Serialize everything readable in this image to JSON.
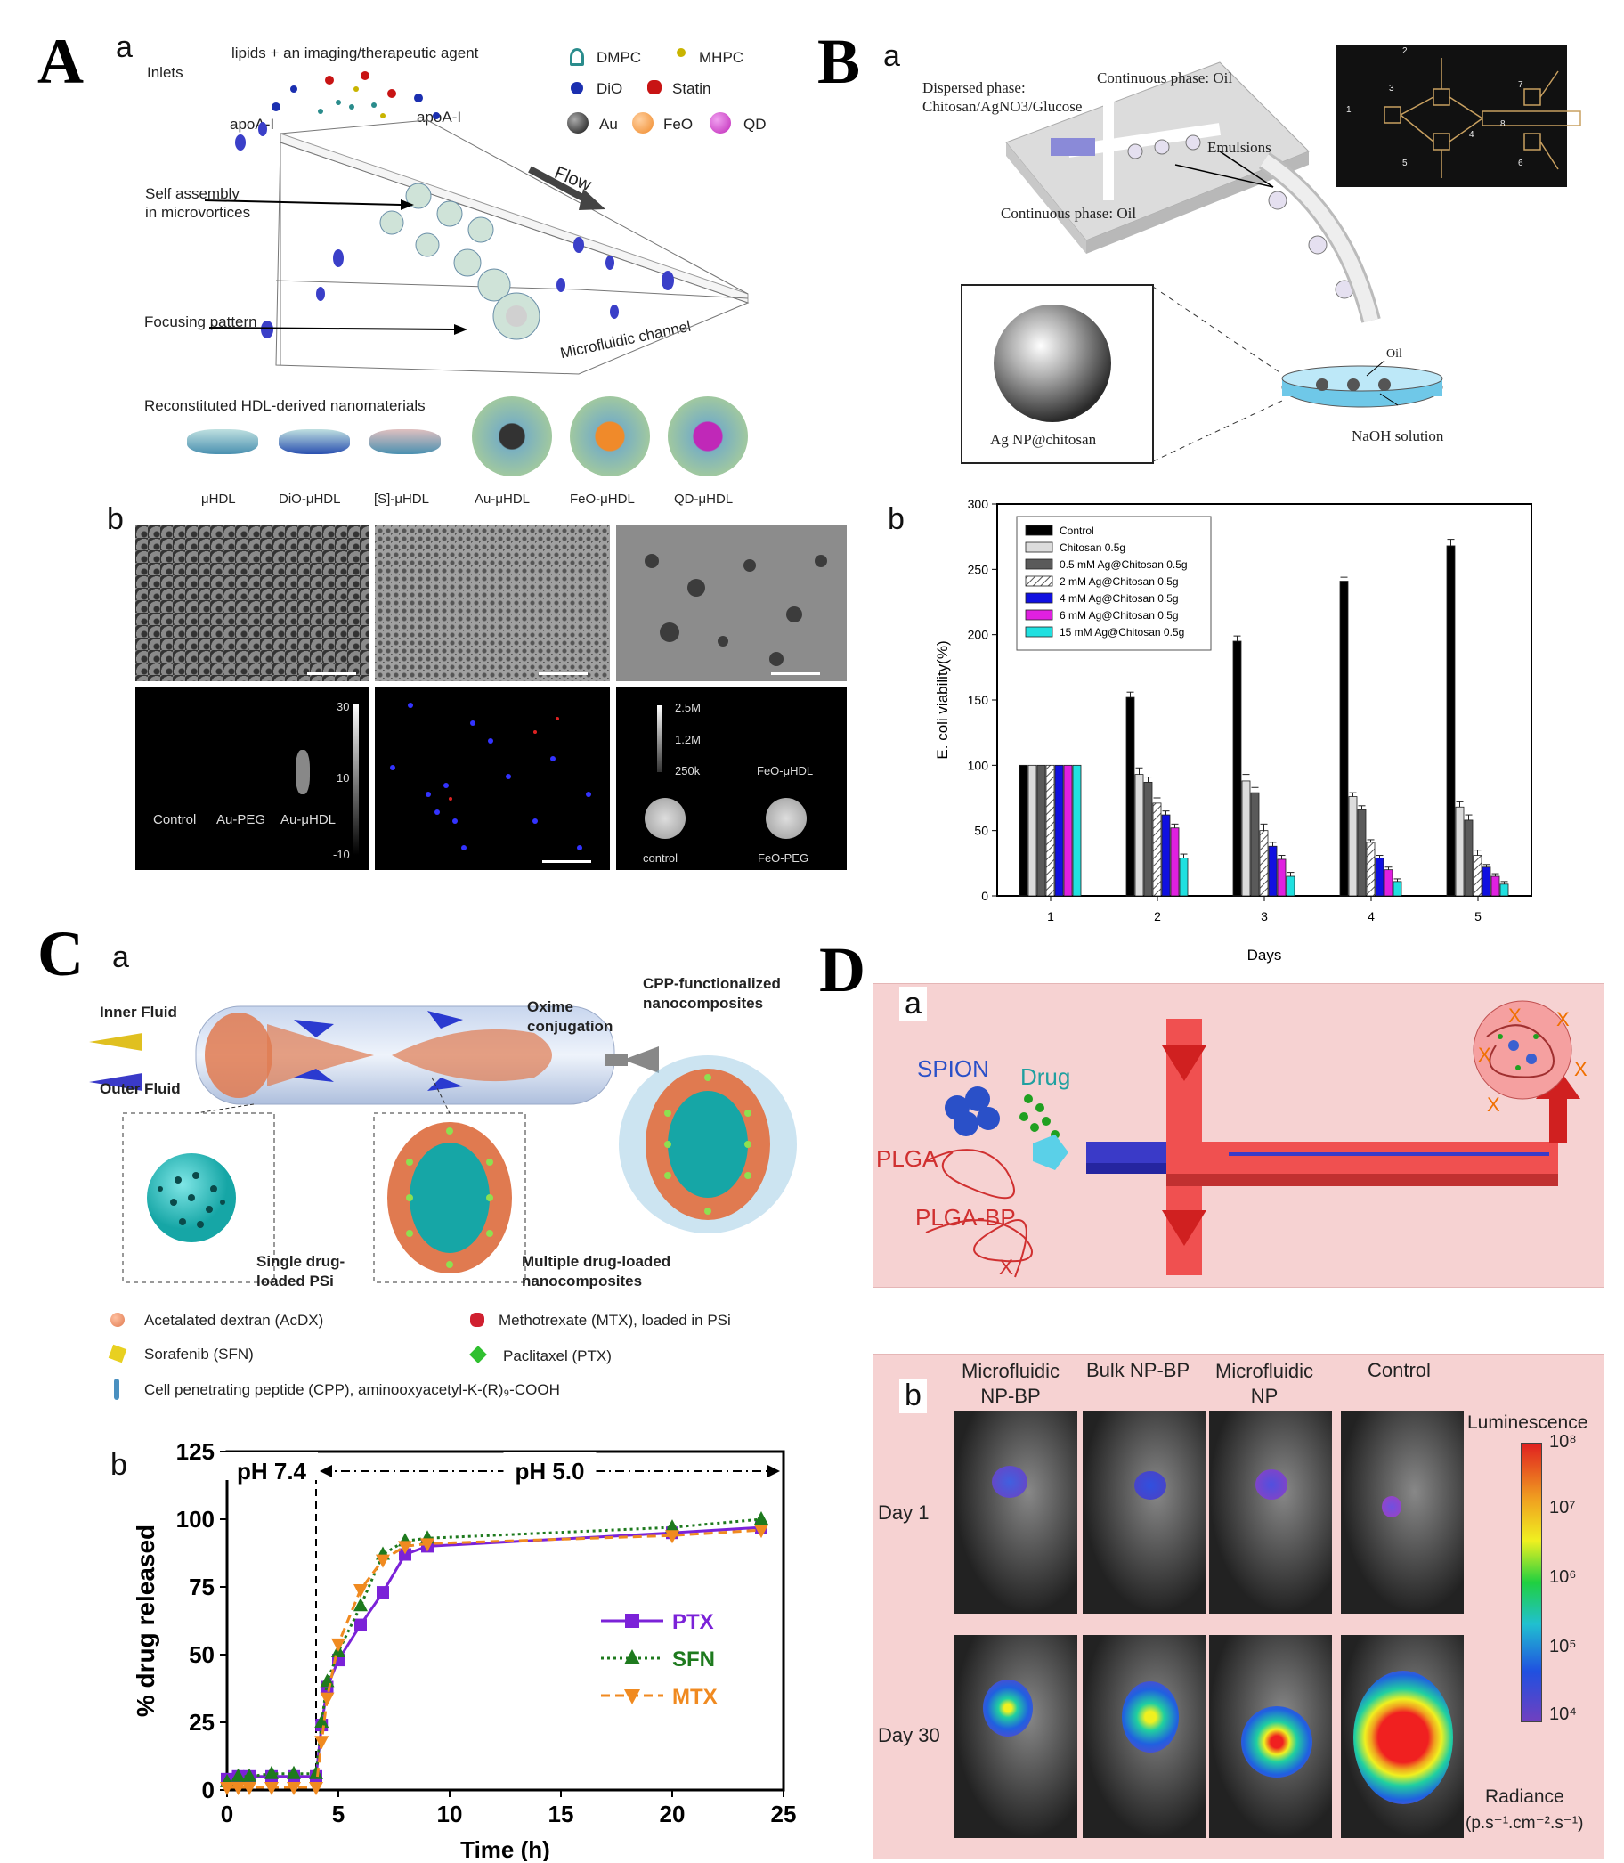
{
  "panel_a": {
    "letter": "A",
    "sub_a": "a",
    "sub_b": "b",
    "inlets": "Inlets",
    "lipids_title": "lipids + an imaging/therapeutic agent",
    "apoa_left": "apoA-I",
    "apoa_right": "apoA-I",
    "self_assembly": "Self assembly\nin microvortices",
    "flow": "Flow",
    "focusing": "Focusing pattern",
    "channel": "Microfluidic channel",
    "legend": [
      {
        "label": "DMPC",
        "color": "#2a8c8c"
      },
      {
        "label": "MHPC",
        "color": "#c9b400"
      },
      {
        "label": "DiO",
        "color": "#1b2fb0"
      },
      {
        "label": "Statin",
        "color": "#c81414"
      },
      {
        "label": "Au",
        "color": "#333333"
      },
      {
        "label": "FeO",
        "color": "#f08a2a"
      },
      {
        "label": "QD",
        "color": "#c028b8"
      }
    ],
    "reconstituted": "Reconstituted HDL-derived nanomaterials",
    "nano_labels": [
      "μHDL",
      "DiO-μHDL",
      "[S]-μHDL",
      "Au-μHDL",
      "FeO-μHDL",
      "QD-μHDL"
    ],
    "ct_scale": [
      "30",
      "10",
      "-10"
    ],
    "ct_labels": [
      "Control",
      "Au-PEG",
      "Au-μHDL"
    ],
    "mri_scale": [
      "2.5M",
      "1.2M",
      "250k"
    ],
    "mri_labels": [
      "FeO-μHDL",
      "control",
      "FeO-PEG"
    ]
  },
  "panel_b": {
    "letter": "B",
    "sub_a": "a",
    "sub_b": "b",
    "dispersed": "Dispersed phase:\nChitosan/AgNO3/Glucose",
    "continuous_top": "Continuous phase: Oil",
    "continuous_bottom": "Continuous phase: Oil",
    "emulsions": "Emulsions",
    "agnp": "Ag NP@chitosan",
    "oil": "Oil",
    "naoh": "NaOH solution",
    "chip_numbers": [
      "1",
      "2",
      "3",
      "4",
      "5",
      "6",
      "7",
      "8"
    ]
  },
  "chart_b": {
    "type": "bar",
    "xlabel": "Days",
    "ylabel": "E. coli viability(%)",
    "ylim": [
      0,
      300
    ],
    "yticks": [
      0,
      50,
      100,
      150,
      200,
      250,
      300
    ],
    "categories": [
      "1",
      "2",
      "3",
      "4",
      "5"
    ],
    "series": [
      {
        "name": "Control",
        "color": "#000000",
        "values": [
          100,
          152,
          195,
          241,
          268
        ],
        "err": [
          0,
          4,
          4,
          3,
          5
        ]
      },
      {
        "name": "Chitosan 0.5g",
        "color": "#dcdcdc",
        "values": [
          100,
          93,
          88,
          76,
          68
        ],
        "err": [
          0,
          5,
          5,
          3,
          4
        ]
      },
      {
        "name": "0.5 mM Ag@Chitosan 0.5g",
        "color": "#5a5a5a",
        "values": [
          100,
          87,
          79,
          66,
          58
        ],
        "err": [
          0,
          4,
          4,
          3,
          4
        ]
      },
      {
        "name": "2 mM Ag@Chitosan 0.5g",
        "color": "#hatch",
        "values": [
          100,
          71,
          50,
          41,
          31
        ],
        "err": [
          0,
          4,
          5,
          2,
          4
        ]
      },
      {
        "name": "4 mM Ag@Chitosan 0.5g",
        "color": "#1010e0",
        "values": [
          100,
          62,
          38,
          29,
          22
        ],
        "err": [
          0,
          3,
          3,
          2,
          2
        ]
      },
      {
        "name": "6 mM Ag@Chitosan 0.5g",
        "color": "#e020e0",
        "values": [
          100,
          52,
          28,
          20,
          15
        ],
        "err": [
          0,
          3,
          3,
          2,
          2
        ]
      },
      {
        "name": "15 mM Ag@Chitosan 0.5g",
        "color": "#20e0e0",
        "values": [
          100,
          29,
          15,
          11,
          9
        ],
        "err": [
          0,
          3,
          3,
          2,
          2
        ]
      }
    ]
  },
  "panel_c": {
    "letter": "C",
    "sub_a": "a",
    "sub_b": "b",
    "inner_fluid": "Inner Fluid",
    "outer_fluid": "Outer Fluid",
    "oxime": "Oxime\nconjugation",
    "cpp_nano": "CPP-functionalized\nnanocomposites",
    "single": "Single drug-\nloaded PSi",
    "multiple": "Multiple drug-loaded\nnanocomposites",
    "legend": [
      {
        "label": "Acetalated dextran (AcDX)",
        "color": "#e87b55"
      },
      {
        "label": "Methotrexate (MTX), loaded in PSi",
        "color": "#d02030"
      },
      {
        "label": "Sorafenib (SFN)",
        "color": "#e8d020"
      },
      {
        "label": "Paclitaxel (PTX)",
        "color": "#30c030"
      },
      {
        "label": "Cell penetrating peptide (CPP), aminooxyacetyl-K-(R)₉-COOH",
        "color": "#4a90c0"
      }
    ]
  },
  "chart_c": {
    "type": "line",
    "xlabel": "Time (h)",
    "ylabel": "% drug released",
    "xlim": [
      0,
      25
    ],
    "ylim": [
      0,
      125
    ],
    "xticks": [
      0,
      5,
      10,
      15,
      20,
      25
    ],
    "yticks": [
      0,
      25,
      50,
      75,
      100,
      125
    ],
    "regions": [
      "pH 7.4",
      "pH 5.0"
    ],
    "divider_x": 4,
    "series": [
      {
        "name": "PTX",
        "color": "#7b22d8",
        "marker": "square",
        "x": [
          0,
          0.5,
          1,
          2,
          3,
          4,
          4.25,
          4.5,
          5,
          6,
          7,
          8,
          9,
          20,
          24
        ],
        "y": [
          4,
          5,
          5,
          5,
          5,
          5,
          24,
          38,
          48,
          61,
          73,
          87,
          90,
          95,
          97
        ]
      },
      {
        "name": "SFN",
        "color": "#1e7a1e",
        "marker": "triangle-up",
        "x": [
          0,
          0.5,
          1,
          2,
          3,
          4,
          4.25,
          4.5,
          5,
          6,
          7,
          8,
          9,
          20,
          24
        ],
        "y": [
          3,
          5,
          5,
          6,
          6,
          6,
          25,
          40,
          51,
          68,
          87,
          92,
          93,
          97,
          100
        ]
      },
      {
        "name": "MTX",
        "color": "#f08a20",
        "marker": "triangle-down",
        "x": [
          0,
          0.5,
          1,
          2,
          3,
          4,
          4.25,
          4.5,
          5,
          6,
          7,
          8,
          9,
          20,
          24
        ],
        "y": [
          1,
          1,
          1,
          1,
          1,
          1,
          18,
          34,
          54,
          74,
          85,
          90,
          91,
          94,
          96
        ]
      }
    ]
  },
  "panel_d": {
    "letter": "D",
    "sub_a": "a",
    "sub_b": "b",
    "spion": "SPION",
    "drug": "Drug",
    "plga": "PLGA",
    "plga_bp": "PLGA-BP",
    "x_mark": "X",
    "columns": [
      "Microfluidic\nNP-BP",
      "Bulk NP-BP",
      "Microfluidic\nNP",
      "Control"
    ],
    "rows": [
      "Day 1",
      "Day 30"
    ],
    "luminescence": "Luminescence",
    "scale_ticks": [
      "10⁸",
      "10⁷",
      "10⁶",
      "10⁵",
      "10⁴"
    ],
    "radiance": "Radiance",
    "radiance_unit": "(p.s⁻¹.cm⁻².s⁻¹)"
  }
}
